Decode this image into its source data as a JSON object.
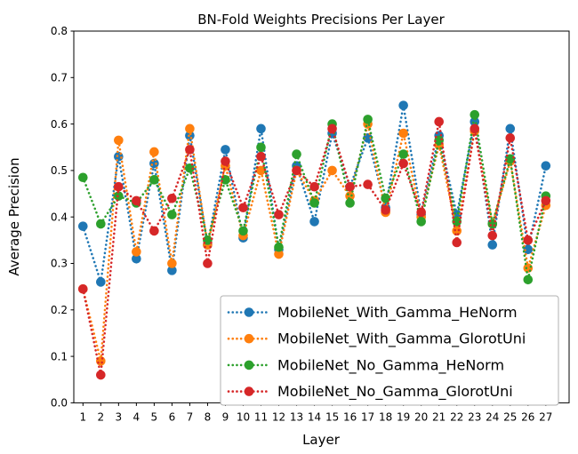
{
  "figure": {
    "title": "BN-Fold Weights Precisions Per Layer",
    "xlabel": "Layer",
    "ylabel": "Average Precision"
  },
  "chart_data": {
    "type": "line",
    "title": "BN-Fold Weights Precisions Per Layer",
    "xlabel": "Layer",
    "ylabel": "Average Precision",
    "line_style": "dotted",
    "marker": "circle",
    "grid": false,
    "legend_position": "lower right",
    "ylim": [
      0.0,
      0.8
    ],
    "yticks": [
      "0.0",
      "0.1",
      "0.2",
      "0.3",
      "0.4",
      "0.5",
      "0.6",
      "0.7",
      "0.8"
    ],
    "x": [
      1,
      2,
      3,
      4,
      5,
      6,
      7,
      8,
      9,
      10,
      11,
      12,
      13,
      14,
      15,
      16,
      17,
      18,
      19,
      20,
      21,
      22,
      23,
      24,
      25,
      26,
      27
    ],
    "series": [
      {
        "name": "MobileNet_With_Gamma_HeNorm",
        "color": "#1f77b4",
        "values": [
          0.38,
          0.26,
          0.53,
          0.31,
          0.515,
          0.285,
          0.575,
          0.34,
          0.545,
          0.355,
          0.59,
          0.33,
          0.51,
          0.39,
          0.58,
          0.465,
          0.57,
          0.42,
          0.64,
          0.405,
          0.575,
          0.405,
          0.605,
          0.34,
          0.59,
          0.33,
          0.51
        ]
      },
      {
        "name": "MobileNet_With_Gamma_GlorotUni",
        "color": "#ff7f0e",
        "values": [
          0.245,
          0.09,
          0.565,
          0.325,
          0.54,
          0.3,
          0.59,
          0.34,
          0.51,
          0.36,
          0.5,
          0.32,
          0.5,
          0.435,
          0.5,
          0.445,
          0.6,
          0.41,
          0.58,
          0.4,
          0.555,
          0.37,
          0.585,
          0.385,
          0.52,
          0.29,
          0.425
        ]
      },
      {
        "name": "MobileNet_No_Gamma_HeNorm",
        "color": "#2ca02c",
        "values": [
          0.485,
          0.385,
          0.445,
          0.43,
          0.48,
          0.405,
          0.505,
          0.35,
          0.48,
          0.37,
          0.55,
          0.335,
          0.535,
          0.43,
          0.6,
          0.43,
          0.61,
          0.44,
          0.535,
          0.39,
          0.565,
          0.39,
          0.62,
          0.385,
          0.525,
          0.265,
          0.445
        ]
      },
      {
        "name": "MobileNet_No_Gamma_GlorotUni",
        "color": "#d62728",
        "values": [
          0.245,
          0.06,
          0.465,
          0.435,
          0.37,
          0.44,
          0.545,
          0.3,
          0.52,
          0.42,
          0.53,
          0.405,
          0.5,
          0.465,
          0.59,
          0.465,
          0.47,
          0.415,
          0.515,
          0.41,
          0.605,
          0.345,
          0.59,
          0.36,
          0.57,
          0.35,
          0.435
        ]
      }
    ]
  }
}
